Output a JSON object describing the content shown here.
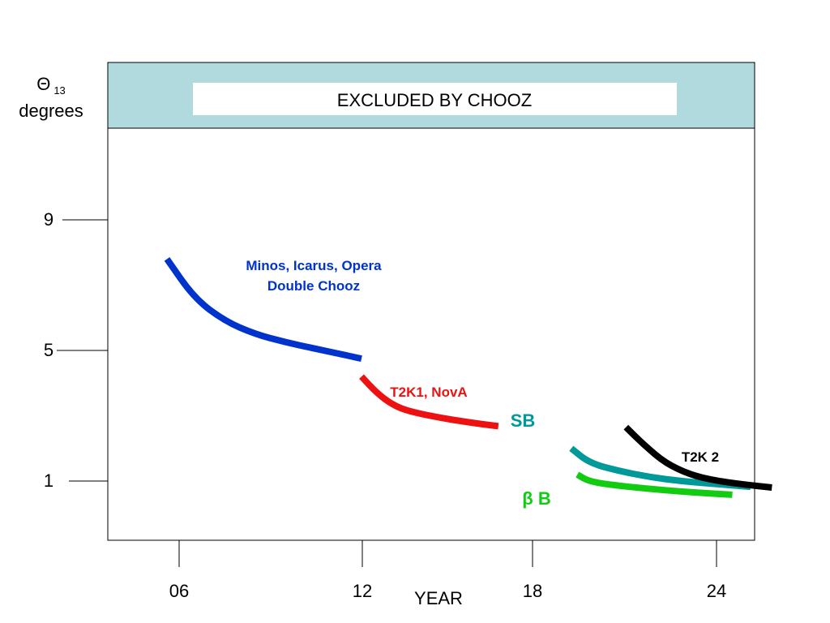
{
  "chart_data": {
    "type": "line",
    "y_axis_label": {
      "symbol": "Θ",
      "subscript": "13",
      "unit": "degrees"
    },
    "xlabel": "YEAR",
    "x_ticks": [
      "06",
      "12",
      "18",
      "24"
    ],
    "y_ticks": [
      "9",
      "5",
      "1"
    ],
    "excluded_band_label": "EXCLUDED BY CHOOZ",
    "series": [
      {
        "name": "Minos, Icarus, Opera Double Chooz",
        "label_lines": [
          "Minos, Icarus, Opera",
          "Double Chooz"
        ],
        "color": "#0033cc",
        "points": [
          [
            5.6,
            7.8
          ],
          [
            6.5,
            6.6
          ],
          [
            7.5,
            5.9
          ],
          [
            8.5,
            5.5
          ],
          [
            9.5,
            5.25
          ],
          [
            10.5,
            5.05
          ],
          [
            11.5,
            4.85
          ],
          [
            12,
            4.75
          ]
        ]
      },
      {
        "name": "T2K1, NovA",
        "label_lines": [
          "T2K1, NovA"
        ],
        "color": "#ee1111",
        "points": [
          [
            12,
            4.2
          ],
          [
            12.5,
            3.7
          ],
          [
            13,
            3.35
          ],
          [
            13.5,
            3.15
          ],
          [
            14.5,
            2.95
          ],
          [
            15.5,
            2.8
          ],
          [
            16.5,
            2.68
          ]
        ]
      },
      {
        "name": "SB",
        "label_lines": [
          "SB"
        ],
        "color": "#009999",
        "points": [
          [
            18.9,
            2.0
          ],
          [
            19.5,
            1.55
          ],
          [
            20.5,
            1.3
          ],
          [
            21.5,
            1.12
          ],
          [
            22.5,
            1.0
          ],
          [
            23.5,
            0.92
          ],
          [
            24.8,
            0.82
          ]
        ]
      },
      {
        "name": "β B",
        "label_lines": [
          "β B"
        ],
        "color": "#11cc11",
        "points": [
          [
            19.1,
            1.2
          ],
          [
            19.5,
            0.98
          ],
          [
            20.5,
            0.85
          ],
          [
            21.5,
            0.76
          ],
          [
            22.5,
            0.68
          ],
          [
            23.5,
            0.62
          ],
          [
            24.2,
            0.58
          ]
        ]
      },
      {
        "name": "T2K 2",
        "label_lines": [
          "T2K 2"
        ],
        "color": "#000000",
        "points": [
          [
            20.7,
            2.65
          ],
          [
            21.3,
            2.1
          ],
          [
            22,
            1.55
          ],
          [
            22.8,
            1.2
          ],
          [
            23.6,
            1.02
          ],
          [
            24.5,
            0.9
          ],
          [
            25.5,
            0.8
          ]
        ]
      }
    ]
  }
}
